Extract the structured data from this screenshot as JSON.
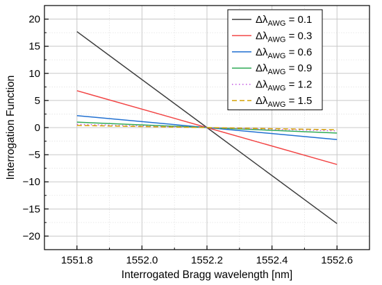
{
  "chart_data": {
    "type": "line",
    "xlabel": "Interrogated Bragg wavelength [nm]",
    "ylabel": "Interrogation Function",
    "xlim": [
      1551.7,
      1552.7
    ],
    "ylim": [
      -22.5,
      22.5
    ],
    "x_ticks": [
      1551.8,
      1552.0,
      1552.2,
      1552.4,
      1552.6
    ],
    "x_tick_labels": [
      "1551.8",
      "1552.0",
      "1552.2",
      "1552.4",
      "1552.6"
    ],
    "y_ticks": [
      -20,
      -15,
      -10,
      -5,
      0,
      5,
      10,
      15,
      20
    ],
    "y_tick_labels": [
      "−20",
      "−15",
      "−10",
      "−5",
      "0",
      "5",
      "10",
      "15",
      "20"
    ],
    "grid": true,
    "minor_grid": true,
    "legend_position": "top-right",
    "legend_prefix": "Δλ",
    "legend_subscript": "AWG",
    "series": [
      {
        "name": "0.1",
        "color": "#3c3c3c",
        "dash": "solid",
        "x": [
          1551.8,
          1552.2,
          1552.6
        ],
        "y": [
          17.7,
          0,
          -17.7
        ]
      },
      {
        "name": "0.3",
        "color": "#f24545",
        "dash": "solid",
        "x": [
          1551.8,
          1552.2,
          1552.6
        ],
        "y": [
          6.8,
          0,
          -6.8
        ]
      },
      {
        "name": "0.6",
        "color": "#1f6fd1",
        "dash": "solid",
        "x": [
          1551.8,
          1552.2,
          1552.6
        ],
        "y": [
          2.2,
          0,
          -2.2
        ]
      },
      {
        "name": "0.9",
        "color": "#2eaa55",
        "dash": "solid",
        "x": [
          1551.8,
          1552.2,
          1552.6
        ],
        "y": [
          1.0,
          0,
          -1.0
        ]
      },
      {
        "name": "1.2",
        "color": "#c050e0",
        "dash": "dot",
        "x": [
          1551.8,
          1552.2,
          1552.6
        ],
        "y": [
          0.6,
          0,
          -0.6
        ]
      },
      {
        "name": "1.5",
        "color": "#d4a000",
        "dash": "dash",
        "x": [
          1551.8,
          1552.2,
          1552.6
        ],
        "y": [
          0.4,
          0,
          -0.4
        ]
      }
    ]
  }
}
